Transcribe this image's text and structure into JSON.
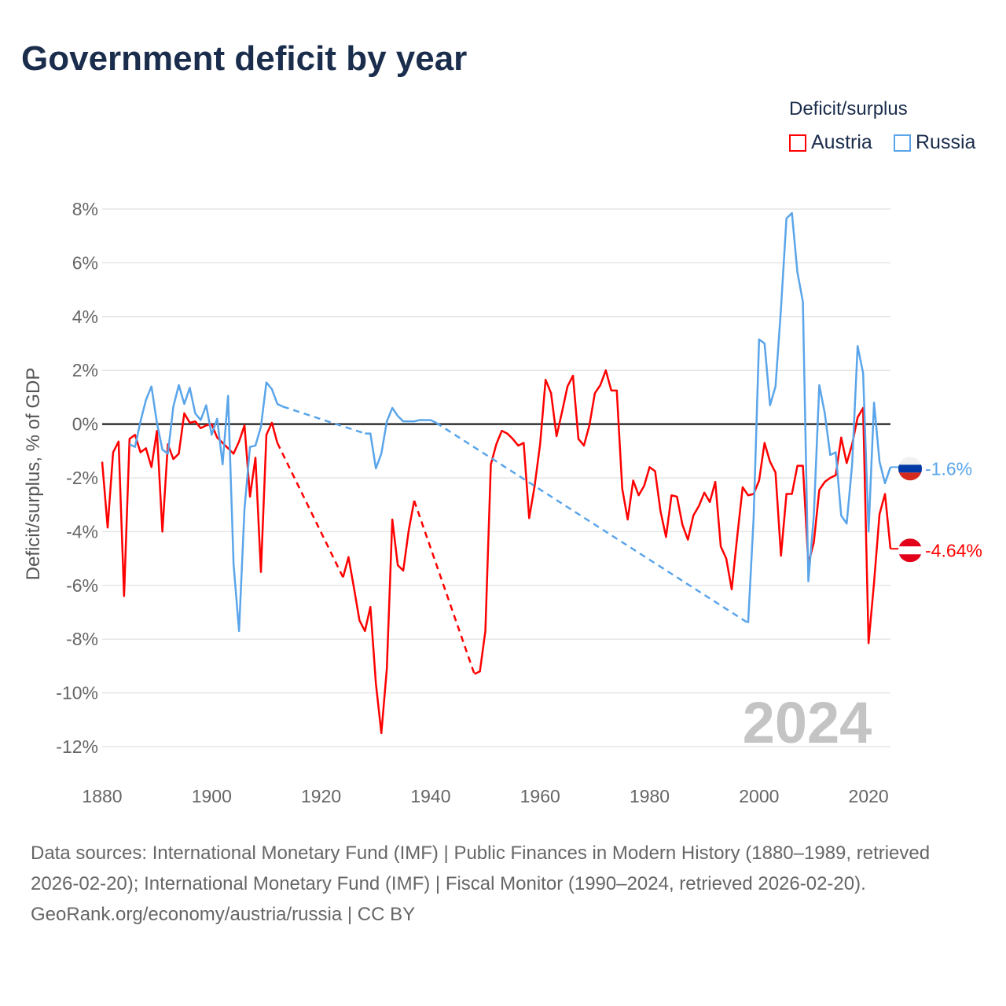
{
  "title": "Government deficit by year",
  "legend": {
    "title": "Deficit/surplus",
    "items": [
      {
        "name": "Austria",
        "color": "#ff0000"
      },
      {
        "name": "Russia",
        "color": "#5aa5ea"
      }
    ]
  },
  "watermark_year": "2024",
  "footer": {
    "sources": "Data sources: International Monetary Fund (IMF) | Public Finances in Modern History (1880–1989, retrieved 2026-02-20); International Monetary Fund (IMF) | Fiscal Monitor (1990–2024, retrieved 2026-02-20).",
    "credit": "GeoRank.org/economy/austria/russia | CC BY"
  },
  "chart_data": {
    "type": "line",
    "title": "Government deficit by year",
    "xlabel": "",
    "ylabel": "Deficit/surplus, % of GDP",
    "xlim": [
      1880,
      2024
    ],
    "ylim": [
      -12,
      8
    ],
    "xticks": [
      1880,
      1900,
      1920,
      1940,
      1960,
      1980,
      2000,
      2020
    ],
    "yticks": [
      8,
      6,
      4,
      2,
      0,
      -2,
      -4,
      -6,
      -8,
      -10,
      -12
    ],
    "ytick_labels": [
      "8%",
      "6%",
      "4%",
      "2%",
      "0%",
      "-2%",
      "-4%",
      "-6%",
      "-8%",
      "-10%",
      "-12%"
    ],
    "grid": true,
    "legend_position": "top-right",
    "end_labels": {
      "Austria": "-4.64%",
      "Russia": "-1.6%"
    },
    "series": [
      {
        "name": "Austria",
        "color": "#ff0000",
        "points": [
          [
            1880,
            -1.4
          ],
          [
            1881,
            -3.85
          ],
          [
            1882,
            -1.05
          ],
          [
            1883,
            -0.65
          ],
          [
            1884,
            -6.4
          ],
          [
            1885,
            -0.55
          ],
          [
            1886,
            -0.4
          ],
          [
            1887,
            -1.05
          ],
          [
            1888,
            -0.9
          ],
          [
            1889,
            -1.6
          ],
          [
            1890,
            -0.25
          ],
          [
            1891,
            -4.0
          ],
          [
            1892,
            -0.75
          ],
          [
            1893,
            -1.3
          ],
          [
            1894,
            -1.1
          ],
          [
            1895,
            0.4
          ],
          [
            1896,
            0.05
          ],
          [
            1897,
            0.1
          ],
          [
            1898,
            -0.15
          ],
          [
            1899,
            -0.05
          ],
          [
            1900,
            0.0
          ],
          [
            1901,
            -0.5
          ],
          [
            1902,
            -0.7
          ],
          [
            1903,
            -0.9
          ],
          [
            1904,
            -1.1
          ],
          [
            1905,
            -0.65
          ],
          [
            1906,
            -0.05
          ],
          [
            1907,
            -2.7
          ],
          [
            1908,
            -1.25
          ],
          [
            1909,
            -5.5
          ],
          [
            1910,
            -0.4
          ],
          [
            1911,
            0.05
          ],
          [
            1912,
            -0.7
          ],
          [
            1924,
            -5.7
          ],
          [
            1925,
            -4.95
          ],
          [
            1926,
            -6.1
          ],
          [
            1927,
            -7.3
          ],
          [
            1928,
            -7.7
          ],
          [
            1929,
            -6.8
          ],
          [
            1930,
            -9.65
          ],
          [
            1931,
            -11.5
          ],
          [
            1932,
            -9.1
          ],
          [
            1933,
            -3.55
          ],
          [
            1934,
            -5.25
          ],
          [
            1935,
            -5.45
          ],
          [
            1936,
            -3.95
          ],
          [
            1937,
            -2.85
          ],
          [
            1948,
            -9.3
          ],
          [
            1949,
            -9.2
          ],
          [
            1950,
            -7.7
          ],
          [
            1951,
            -1.5
          ],
          [
            1952,
            -0.75
          ],
          [
            1953,
            -0.25
          ],
          [
            1954,
            -0.35
          ],
          [
            1955,
            -0.55
          ],
          [
            1956,
            -0.8
          ],
          [
            1957,
            -0.7
          ],
          [
            1958,
            -3.5
          ],
          [
            1959,
            -2.3
          ],
          [
            1960,
            -0.75
          ],
          [
            1961,
            1.65
          ],
          [
            1962,
            1.15
          ],
          [
            1963,
            -0.45
          ],
          [
            1964,
            0.45
          ],
          [
            1965,
            1.4
          ],
          [
            1966,
            1.8
          ],
          [
            1967,
            -0.55
          ],
          [
            1968,
            -0.8
          ],
          [
            1969,
            -0.05
          ],
          [
            1970,
            1.15
          ],
          [
            1971,
            1.45
          ],
          [
            1972,
            2.0
          ],
          [
            1973,
            1.25
          ],
          [
            1974,
            1.25
          ],
          [
            1975,
            -2.4
          ],
          [
            1976,
            -3.55
          ],
          [
            1977,
            -2.1
          ],
          [
            1978,
            -2.65
          ],
          [
            1979,
            -2.3
          ],
          [
            1980,
            -1.6
          ],
          [
            1981,
            -1.75
          ],
          [
            1982,
            -3.25
          ],
          [
            1983,
            -4.2
          ],
          [
            1984,
            -2.65
          ],
          [
            1985,
            -2.7
          ],
          [
            1986,
            -3.75
          ],
          [
            1987,
            -4.3
          ],
          [
            1988,
            -3.4
          ],
          [
            1989,
            -3.05
          ],
          [
            1990,
            -2.55
          ],
          [
            1991,
            -2.9
          ],
          [
            1992,
            -2.15
          ],
          [
            1993,
            -4.55
          ],
          [
            1994,
            -5.0
          ],
          [
            1995,
            -6.15
          ],
          [
            1996,
            -4.2
          ],
          [
            1997,
            -2.35
          ],
          [
            1998,
            -2.65
          ],
          [
            1999,
            -2.6
          ],
          [
            2000,
            -2.1
          ],
          [
            2001,
            -0.7
          ],
          [
            2002,
            -1.4
          ],
          [
            2003,
            -1.8
          ],
          [
            2004,
            -4.9
          ],
          [
            2005,
            -2.6
          ],
          [
            2006,
            -2.6
          ],
          [
            2007,
            -1.55
          ],
          [
            2008,
            -1.55
          ],
          [
            2009,
            -5.2
          ],
          [
            2010,
            -4.4
          ],
          [
            2011,
            -2.45
          ],
          [
            2012,
            -2.15
          ],
          [
            2013,
            -2.0
          ],
          [
            2014,
            -1.9
          ],
          [
            2015,
            -0.5
          ],
          [
            2016,
            -1.45
          ],
          [
            2017,
            -0.75
          ],
          [
            2018,
            0.25
          ],
          [
            2019,
            0.6
          ],
          [
            2020,
            -8.15
          ],
          [
            2021,
            -5.9
          ],
          [
            2022,
            -3.35
          ],
          [
            2023,
            -2.6
          ],
          [
            2024,
            -4.64
          ]
        ]
      },
      {
        "name": "Russia",
        "color": "#5aa5ea",
        "points": [
          [
            1885,
            -0.75
          ],
          [
            1886,
            -0.85
          ],
          [
            1887,
            0.1
          ],
          [
            1888,
            0.9
          ],
          [
            1889,
            1.4
          ],
          [
            1890,
            0.05
          ],
          [
            1891,
            -0.95
          ],
          [
            1892,
            -1.1
          ],
          [
            1893,
            0.65
          ],
          [
            1894,
            1.45
          ],
          [
            1895,
            0.75
          ],
          [
            1896,
            1.35
          ],
          [
            1897,
            0.4
          ],
          [
            1898,
            0.15
          ],
          [
            1899,
            0.7
          ],
          [
            1900,
            -0.4
          ],
          [
            1901,
            0.2
          ],
          [
            1902,
            -1.5
          ],
          [
            1903,
            1.05
          ],
          [
            1904,
            -5.2
          ],
          [
            1905,
            -7.7
          ],
          [
            1906,
            -3.15
          ],
          [
            1907,
            -0.85
          ],
          [
            1908,
            -0.8
          ],
          [
            1909,
            -0.1
          ],
          [
            1910,
            1.55
          ],
          [
            1911,
            1.3
          ],
          [
            1912,
            0.75
          ],
          [
            1913,
            0.65
          ],
          [
            1928,
            -0.35
          ],
          [
            1929,
            -0.35
          ],
          [
            1930,
            -1.65
          ],
          [
            1931,
            -1.1
          ],
          [
            1932,
            0.1
          ],
          [
            1933,
            0.6
          ],
          [
            1934,
            0.3
          ],
          [
            1935,
            0.1
          ],
          [
            1936,
            0.1
          ],
          [
            1937,
            0.1
          ],
          [
            1938,
            0.15
          ],
          [
            1939,
            0.15
          ],
          [
            1940,
            0.15
          ],
          [
            1941,
            0.05
          ],
          [
            1998,
            -7.4
          ],
          [
            1999,
            -3.5
          ],
          [
            2000,
            3.15
          ],
          [
            2001,
            3.0
          ],
          [
            2002,
            0.7
          ],
          [
            2003,
            1.4
          ],
          [
            2004,
            4.3
          ],
          [
            2005,
            7.65
          ],
          [
            2006,
            7.85
          ],
          [
            2007,
            5.65
          ],
          [
            2008,
            4.55
          ],
          [
            2009,
            -5.85
          ],
          [
            2010,
            -3.4
          ],
          [
            2011,
            1.45
          ],
          [
            2012,
            0.4
          ],
          [
            2013,
            -1.15
          ],
          [
            2014,
            -1.05
          ],
          [
            2015,
            -3.4
          ],
          [
            2016,
            -3.7
          ],
          [
            2017,
            -1.5
          ],
          [
            2018,
            2.9
          ],
          [
            2019,
            1.9
          ],
          [
            2020,
            -4.0
          ],
          [
            2021,
            0.8
          ],
          [
            2022,
            -1.4
          ],
          [
            2023,
            -2.2
          ],
          [
            2024,
            -1.6
          ]
        ]
      }
    ]
  }
}
